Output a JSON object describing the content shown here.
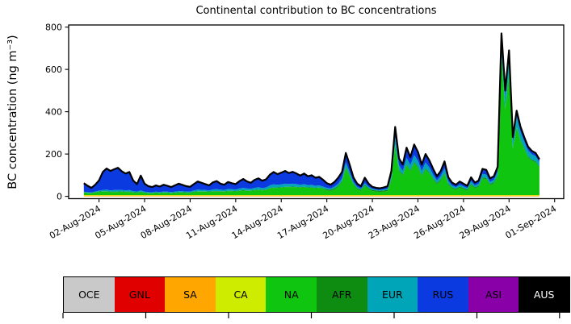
{
  "title": "Continental contribution to BC concentrations",
  "ylabel": "BC concentration (ng m⁻³)",
  "chart_data": {
    "type": "area",
    "stacked": true,
    "title": "Continental contribution to BC concentrations",
    "xlabel": "",
    "ylabel": "BC concentration (ng m-3)",
    "grid": false,
    "legend_position": "bottom-colorbar-strip",
    "x_time": {
      "start_label": "01-Aug-2024 00:00",
      "step_hours": 6,
      "count": 121
    },
    "xlim_days": [
      -1,
      31.6
    ],
    "ylim": [
      -11,
      810
    ],
    "y_ticks": [
      0,
      200,
      400,
      600,
      800
    ],
    "x_ticks": [
      {
        "day": 1,
        "label": "02-Aug-2024"
      },
      {
        "day": 4,
        "label": "05-Aug-2024"
      },
      {
        "day": 7,
        "label": "08-Aug-2024"
      },
      {
        "day": 10,
        "label": "11-Aug-2024"
      },
      {
        "day": 13,
        "label": "14-Aug-2024"
      },
      {
        "day": 16,
        "label": "17-Aug-2024"
      },
      {
        "day": 19,
        "label": "20-Aug-2024"
      },
      {
        "day": 22,
        "label": "23-Aug-2024"
      },
      {
        "day": 25,
        "label": "26-Aug-2024"
      },
      {
        "day": 28,
        "label": "29-Aug-2024"
      },
      {
        "day": 31,
        "label": "01-Sep-2024"
      }
    ],
    "total_line": {
      "color": "#000000",
      "width": 2.2
    },
    "series": [
      {
        "name": "OCE",
        "color": "#c9c9c9",
        "values": {
          "constant": 0
        }
      },
      {
        "name": "GNL",
        "color": "#e00000",
        "values": {
          "constant": 0
        }
      },
      {
        "name": "SA",
        "color": "#ffa600",
        "values": {
          "constant": 4
        }
      },
      {
        "name": "CA",
        "color": "#cdec00",
        "values": {
          "constant": 2
        }
      },
      {
        "name": "NA",
        "color": "#0fc50f",
        "values": [
          11,
          9,
          8,
          12,
          15,
          16,
          17,
          14,
          15,
          14,
          16,
          14,
          15,
          12,
          11,
          14,
          10,
          9,
          8,
          10,
          9,
          11,
          10,
          9,
          10,
          12,
          12,
          11,
          11,
          14,
          16,
          16,
          16,
          15,
          17,
          17,
          17,
          16,
          18,
          18,
          17,
          20,
          21,
          20,
          20,
          22,
          24,
          22,
          24,
          31,
          34,
          34,
          35,
          37,
          37,
          38,
          37,
          35,
          37,
          34,
          35,
          32,
          34,
          30,
          22,
          20,
          27,
          39,
          62,
          129,
          89,
          48,
          27,
          20,
          43,
          28,
          19,
          17,
          15,
          17,
          19,
          71,
          235,
          115,
          91,
          142,
          112,
          151,
          129,
          89,
          122,
          102,
          74,
          51,
          69,
          100,
          49,
          31,
          25,
          35,
          28,
          21,
          49,
          31,
          39,
          78,
          76,
          47,
          55,
          89,
          652,
          404,
          577,
          217,
          322,
          257,
          217,
          178,
          162,
          155,
          130
        ]
      },
      {
        "name": "AFR",
        "color": "#0e8c12",
        "values": {
          "segments": [
            {
              "value": 2,
              "count": 64
            },
            {
              "value": 5,
              "count": 57
            }
          ]
        }
      },
      {
        "name": "EUR",
        "color": "#00a5b8",
        "values": [
          3,
          3,
          2,
          3,
          4,
          6,
          7,
          6,
          7,
          8,
          6,
          6,
          7,
          5,
          4,
          6,
          4,
          3,
          3,
          4,
          3,
          4,
          4,
          3,
          4,
          5,
          4,
          4,
          4,
          6,
          8,
          7,
          6,
          5,
          8,
          9,
          7,
          6,
          9,
          8,
          7,
          9,
          11,
          9,
          8,
          10,
          11,
          9,
          10,
          13,
          15,
          13,
          14,
          15,
          13,
          14,
          13,
          11,
          13,
          11,
          12,
          10,
          10,
          8,
          7,
          6,
          8,
          10,
          12,
          20,
          15,
          9,
          7,
          5,
          9,
          6,
          5,
          4,
          4,
          5,
          6,
          14,
          35,
          22,
          18,
          30,
          25,
          33,
          28,
          20,
          27,
          23,
          18,
          13,
          16,
          22,
          12,
          9,
          7,
          9,
          8,
          7,
          12,
          9,
          10,
          17,
          16,
          11,
          12,
          18,
          70,
          55,
          65,
          30,
          45,
          38,
          32,
          28,
          26,
          24,
          20
        ]
      },
      {
        "name": "RUS",
        "color": "#0a3ae0",
        "values": [
          40,
          30,
          22,
          32,
          48,
          85,
          100,
          92,
          98,
          105,
          88,
          80,
          85,
          50,
          35,
          70,
          38,
          28,
          25,
          30,
          26,
          32,
          28,
          24,
          30,
          35,
          30,
          25,
          22,
          30,
          38,
          33,
          28,
          24,
          33,
          38,
          28,
          25,
          33,
          28,
          26,
          35,
          42,
          33,
          28,
          38,
          42,
          35,
          38,
          50,
          58,
          50,
          55,
          60,
          52,
          56,
          50,
          44,
          50,
          42,
          45,
          38,
          40,
          32,
          22,
          18,
          22,
          28,
          30,
          45,
          35,
          22,
          15,
          12,
          25,
          15,
          10,
          8,
          8,
          9,
          10,
          22,
          45,
          30,
          28,
          45,
          35,
          48,
          40,
          28,
          38,
          32,
          25,
          18,
          22,
          30,
          16,
          12,
          10,
          13,
          11,
          9,
          16,
          12,
          13,
          22,
          20,
          14,
          15,
          20,
          35,
          28,
          35,
          20,
          25,
          22,
          18,
          16,
          14,
          13,
          12
        ]
      },
      {
        "name": "ASI",
        "color": "#8a00a8",
        "values": {
          "segments": [
            {
              "value": 0,
              "count": 80
            },
            {
              "value": 2,
              "count": 41
            }
          ]
        }
      },
      {
        "name": "AUS",
        "color": "#000000",
        "values": {
          "constant": 0
        }
      }
    ]
  },
  "legend": {
    "items": [
      {
        "label": "OCE",
        "color": "#c9c9c9",
        "text": "#000000"
      },
      {
        "label": "GNL",
        "color": "#e00000",
        "text": "#000000"
      },
      {
        "label": "SA",
        "color": "#ffa600",
        "text": "#000000"
      },
      {
        "label": "CA",
        "color": "#cdec00",
        "text": "#000000"
      },
      {
        "label": "NA",
        "color": "#0fc50f",
        "text": "#000000"
      },
      {
        "label": "AFR",
        "color": "#0e8c12",
        "text": "#000000"
      },
      {
        "label": "EUR",
        "color": "#00a5b8",
        "text": "#000000"
      },
      {
        "label": "RUS",
        "color": "#0a3ae0",
        "text": "#000000"
      },
      {
        "label": "ASI",
        "color": "#8a00a8",
        "text": "#000000"
      },
      {
        "label": "AUS",
        "color": "#000000",
        "text": "#ffffff"
      }
    ],
    "axis_ticks_x": [
      78,
      180.5,
      283,
      385.5,
      488,
      590.5,
      692.8
    ]
  }
}
